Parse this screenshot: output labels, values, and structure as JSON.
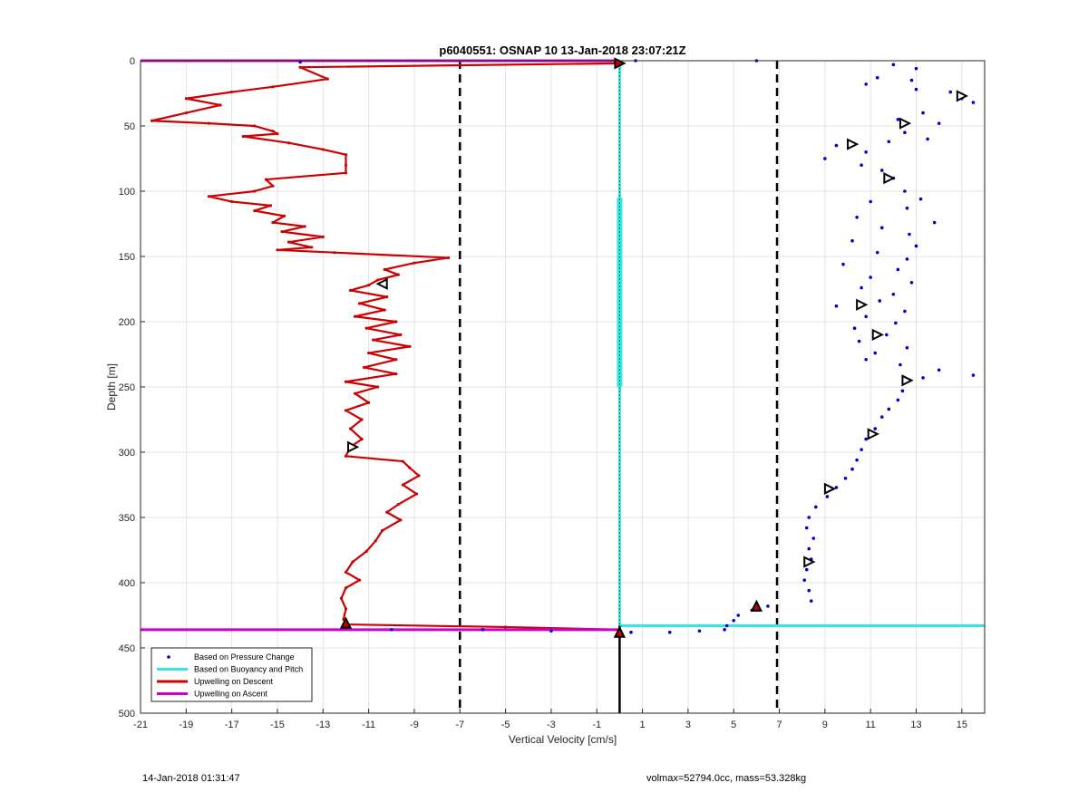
{
  "chart_data": {
    "type": "scatter",
    "title": "p6040551: OSNAP 10 13-Jan-2018 23:07:21Z",
    "xlabel": "Vertical Velocity [cm/s]",
    "ylabel": "Depth [m]",
    "xlim": [
      -21,
      16
    ],
    "ylim": [
      0,
      500
    ],
    "y_reversed": true,
    "grid": true,
    "xticks": [
      "-21",
      "-19",
      "-17",
      "-15",
      "-13",
      "-11",
      "-9",
      "-7",
      "-5",
      "-3",
      "-1",
      "1",
      "3",
      "5",
      "7",
      "9",
      "11",
      "13",
      "15"
    ],
    "yticks": [
      "0",
      "50",
      "100",
      "150",
      "200",
      "250",
      "300",
      "350",
      "400",
      "450",
      "500"
    ],
    "legend_position": "bottom-left",
    "legend": [
      {
        "label": "Based on Pressure Change",
        "color": "#0000cc",
        "style": "dot"
      },
      {
        "label": "Based on Buoyancy and Pitch",
        "color": "#33e6e6",
        "style": "line"
      },
      {
        "label": "Upwelling on Descent",
        "color": "#cc0000",
        "style": "line"
      },
      {
        "label": "Upwelling on Ascent",
        "color": "#cc00cc",
        "style": "line"
      }
    ],
    "reference_lines": {
      "vertical_dashed_x": [
        -7,
        6.9
      ],
      "zero_line_x": 0,
      "magenta_depths": [
        0,
        436
      ]
    },
    "series": [
      {
        "name": "Upwelling on Descent",
        "color": "#cc0000",
        "points": [
          [
            0,
            2
          ],
          [
            -14,
            5
          ],
          [
            -12.8,
            14
          ],
          [
            -15.2,
            20
          ],
          [
            -17,
            24
          ],
          [
            -19,
            29
          ],
          [
            -17.5,
            34
          ],
          [
            -19,
            40
          ],
          [
            -20.5,
            46
          ],
          [
            -18,
            48
          ],
          [
            -16,
            50
          ],
          [
            -15.2,
            54
          ],
          [
            -15,
            56
          ],
          [
            -16.5,
            58
          ],
          [
            -14.5,
            63
          ],
          [
            -13,
            68
          ],
          [
            -12,
            72
          ],
          [
            -12,
            80
          ],
          [
            -12,
            86
          ],
          [
            -15.5,
            91
          ],
          [
            -15.2,
            96
          ],
          [
            -16,
            100
          ],
          [
            -18,
            104
          ],
          [
            -17,
            108
          ],
          [
            -15.3,
            111
          ],
          [
            -16,
            115
          ],
          [
            -14.7,
            119
          ],
          [
            -15.2,
            124
          ],
          [
            -13.8,
            127
          ],
          [
            -14.8,
            131
          ],
          [
            -13,
            135
          ],
          [
            -14.5,
            139
          ],
          [
            -13.5,
            143
          ],
          [
            -15,
            145
          ],
          [
            -12.5,
            147
          ],
          [
            -7.5,
            151
          ],
          [
            -9,
            155
          ],
          [
            -10.3,
            160
          ],
          [
            -9.7,
            164
          ],
          [
            -10.6,
            168
          ],
          [
            -11,
            172
          ],
          [
            -11.8,
            176
          ],
          [
            -10.2,
            181
          ],
          [
            -11.4,
            186
          ],
          [
            -10.3,
            191
          ],
          [
            -11.6,
            196
          ],
          [
            -9.8,
            200
          ],
          [
            -11.1,
            205
          ],
          [
            -9.6,
            210
          ],
          [
            -10.8,
            214
          ],
          [
            -9.2,
            219
          ],
          [
            -11,
            224
          ],
          [
            -9.8,
            229
          ],
          [
            -11.2,
            235
          ],
          [
            -9.8,
            240
          ],
          [
            -12,
            246
          ],
          [
            -10.6,
            250
          ],
          [
            -11.6,
            255
          ],
          [
            -11,
            262
          ],
          [
            -12,
            268
          ],
          [
            -11.3,
            275
          ],
          [
            -11.8,
            282
          ],
          [
            -11.3,
            290
          ],
          [
            -11.8,
            296
          ],
          [
            -12,
            303
          ],
          [
            -9.5,
            307
          ],
          [
            -9.2,
            312
          ],
          [
            -8.8,
            318
          ],
          [
            -9.5,
            325
          ],
          [
            -8.9,
            332
          ],
          [
            -9.7,
            340
          ],
          [
            -10.2,
            346
          ],
          [
            -9.6,
            352
          ],
          [
            -10.4,
            360
          ],
          [
            -10.7,
            368
          ],
          [
            -11.1,
            376
          ],
          [
            -11.7,
            384
          ],
          [
            -12,
            392
          ],
          [
            -11.4,
            398
          ],
          [
            -12,
            404
          ],
          [
            -12.2,
            412
          ],
          [
            -12,
            420
          ],
          [
            -12.1,
            428
          ],
          [
            -12,
            432
          ],
          [
            -5,
            434
          ],
          [
            0,
            436
          ]
        ]
      },
      {
        "name": "Upwelling on Ascent",
        "color": "#cc00cc",
        "points": [
          [
            -21,
            0
          ],
          [
            0,
            0
          ],
          [
            -21,
            436
          ],
          [
            0,
            436
          ]
        ]
      },
      {
        "name": "Based on Buoyancy and Pitch",
        "color": "#33e6e6",
        "points": [
          [
            0,
            0
          ],
          [
            0,
            433
          ],
          [
            16,
            433
          ]
        ],
        "thick_segment_depths": [
          105,
          250
        ]
      },
      {
        "name": "Based on Pressure Change",
        "color": "#0000cc",
        "points": [
          [
            0.7,
            0
          ],
          [
            6,
            0
          ],
          [
            -14,
            1
          ],
          [
            12,
            3
          ],
          [
            11.3,
            13
          ],
          [
            13,
            6
          ],
          [
            12.8,
            15
          ],
          [
            10.8,
            18
          ],
          [
            15.5,
            32
          ],
          [
            14.5,
            24
          ],
          [
            15,
            29
          ],
          [
            13,
            22
          ],
          [
            13.3,
            40
          ],
          [
            14,
            48
          ],
          [
            12.2,
            45
          ],
          [
            12.5,
            55
          ],
          [
            13.5,
            60
          ],
          [
            11.8,
            62
          ],
          [
            9.5,
            65
          ],
          [
            10.8,
            70
          ],
          [
            9,
            75
          ],
          [
            10.6,
            80
          ],
          [
            11.5,
            84
          ],
          [
            12,
            90
          ],
          [
            12.5,
            100
          ],
          [
            13.2,
            106
          ],
          [
            11,
            108
          ],
          [
            12.6,
            113
          ],
          [
            10.4,
            120
          ],
          [
            13.8,
            124
          ],
          [
            11.5,
            128
          ],
          [
            12.7,
            133
          ],
          [
            10.2,
            138
          ],
          [
            13,
            142
          ],
          [
            11.3,
            147
          ],
          [
            12.6,
            152
          ],
          [
            9.8,
            156
          ],
          [
            12.2,
            160
          ],
          [
            11,
            166
          ],
          [
            12.8,
            170
          ],
          [
            10.6,
            174
          ],
          [
            12,
            179
          ],
          [
            11.4,
            184
          ],
          [
            9.5,
            188
          ],
          [
            12.5,
            192
          ],
          [
            10.8,
            196
          ],
          [
            12.1,
            201
          ],
          [
            10.3,
            205
          ],
          [
            11.7,
            210
          ],
          [
            10.5,
            215
          ],
          [
            12.6,
            220
          ],
          [
            11.2,
            224
          ],
          [
            10.8,
            229
          ],
          [
            12.3,
            233
          ],
          [
            14,
            237
          ],
          [
            15.5,
            241
          ],
          [
            13.3,
            243
          ],
          [
            12.5,
            246
          ],
          [
            12.4,
            253
          ],
          [
            12.2,
            260
          ],
          [
            11.8,
            267
          ],
          [
            11.5,
            273
          ],
          [
            11.2,
            282
          ],
          [
            10.8,
            290
          ],
          [
            10.6,
            298
          ],
          [
            10.4,
            306
          ],
          [
            10.2,
            313
          ],
          [
            9.9,
            320
          ],
          [
            9.5,
            327
          ],
          [
            9.1,
            334
          ],
          [
            8.6,
            342
          ],
          [
            8.3,
            350
          ],
          [
            8.2,
            358
          ],
          [
            8.5,
            366
          ],
          [
            8.3,
            374
          ],
          [
            8.4,
            382
          ],
          [
            8.2,
            390
          ],
          [
            8.1,
            398
          ],
          [
            8.3,
            406
          ],
          [
            8.4,
            414
          ],
          [
            6.5,
            418
          ],
          [
            5.8,
            421
          ],
          [
            5.2,
            425
          ],
          [
            5,
            429
          ],
          [
            4.7,
            433
          ],
          [
            4.6,
            436
          ],
          [
            3.5,
            437
          ],
          [
            2.2,
            438
          ],
          [
            -3,
            437
          ],
          [
            -6,
            436
          ],
          [
            -10,
            436
          ],
          [
            0.5,
            438
          ]
        ]
      }
    ],
    "markers": {
      "open_triangles": [
        [
          15,
          27
        ],
        [
          12.5,
          48
        ],
        [
          10.2,
          64
        ],
        [
          11.8,
          90
        ],
        [
          10.6,
          187
        ],
        [
          11.3,
          210
        ],
        [
          12.6,
          245
        ],
        [
          11.1,
          286
        ],
        [
          9.2,
          328
        ],
        [
          8.3,
          384
        ],
        [
          -10.4,
          171
        ],
        [
          -11.7,
          296
        ]
      ],
      "filled_triangles": [
        [
          0,
          2
        ],
        [
          -12,
          431
        ],
        [
          0,
          438
        ],
        [
          6,
          418
        ]
      ]
    }
  },
  "footer": {
    "left_text": "14-Jan-2018 01:31:47",
    "right_text": "volmax=52794.0cc, mass=53.328kg"
  }
}
